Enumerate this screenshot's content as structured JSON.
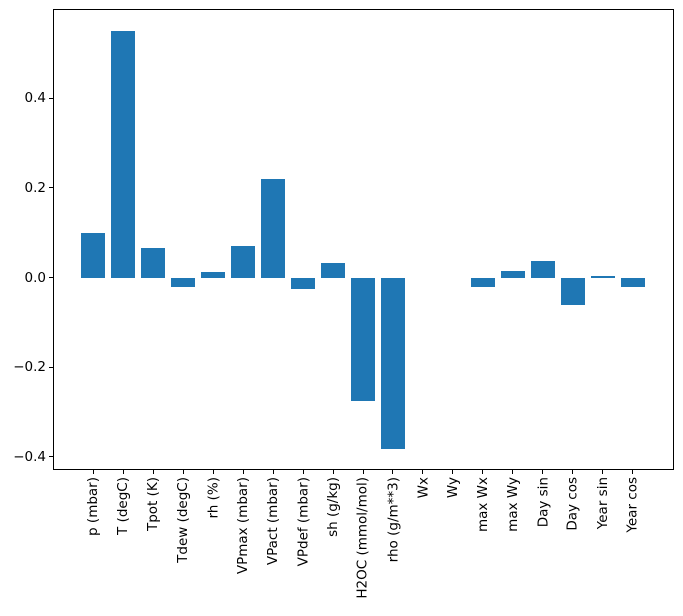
{
  "figure": {
    "background": "#ffffff",
    "axes_edge_color": "#000000",
    "text_color": "#000000"
  },
  "chart_data": {
    "type": "bar",
    "title": "",
    "xlabel": "",
    "ylabel": "",
    "categories": [
      "p (mbar)",
      "T (degC)",
      "Tpot (K)",
      "Tdew (degC)",
      "rh (%)",
      "VPmax (mbar)",
      "VPact (mbar)",
      "VPdef (mbar)",
      "sh (g/kg)",
      "H2OC (mmol/mol)",
      "rho (g/m**3)",
      "Wx",
      "Wy",
      "max Wx",
      "max Wy",
      "Day sin",
      "Day cos",
      "Year sin",
      "Year cos"
    ],
    "values": [
      0.1,
      0.55,
      0.065,
      -0.02,
      0.013,
      0.07,
      0.22,
      -0.025,
      0.033,
      -0.275,
      -0.383,
      0.0,
      0.0,
      -0.02,
      0.015,
      0.037,
      -0.061,
      0.004,
      -0.02
    ],
    "bar_color": "#1f77b4",
    "bar_width": 0.8,
    "xlim": [
      -1.34,
      19.34
    ],
    "ylim": [
      -0.427,
      0.599
    ],
    "yticks": [
      -0.4,
      -0.2,
      0.0,
      0.2,
      0.4
    ],
    "ytick_labels": [
      "−0.4",
      "−0.2",
      "0.0",
      "0.2",
      "0.4"
    ],
    "xtick_rotation": 90,
    "grid": false,
    "legend": null
  }
}
